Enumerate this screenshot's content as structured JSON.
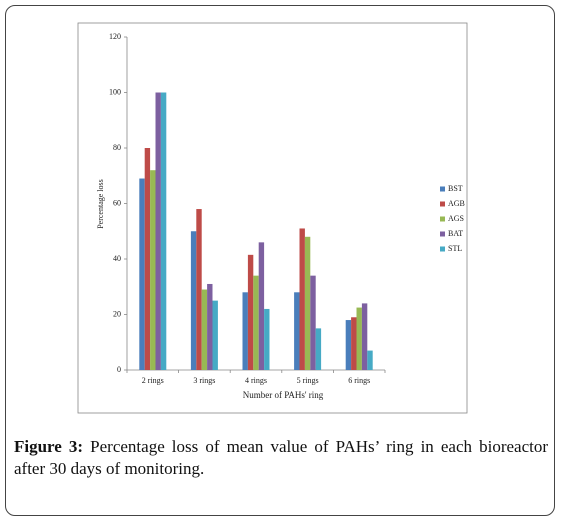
{
  "chart_data": {
    "type": "bar",
    "y_label": "Percentage loss",
    "x_label": "Number of PAHs' ring",
    "categories": [
      "2 rings",
      "3 rings",
      "4 rings",
      "5 rings",
      "6 rings"
    ],
    "series": [
      {
        "name": "BST",
        "color": "#4a7ebb",
        "values": [
          69,
          50,
          28,
          28,
          18
        ]
      },
      {
        "name": "AGB",
        "color": "#be4b48",
        "values": [
          80,
          58,
          41.5,
          51,
          19
        ]
      },
      {
        "name": "AGS",
        "color": "#98b954",
        "values": [
          72,
          29,
          34,
          48,
          22.5
        ]
      },
      {
        "name": "BAT",
        "color": "#7d60a0",
        "values": [
          100,
          31,
          46,
          34,
          24
        ]
      },
      {
        "name": "STL",
        "color": "#46aac5",
        "values": [
          100,
          25,
          22,
          15,
          7
        ]
      }
    ],
    "ylim": [
      0,
      120
    ],
    "yticks": [
      0,
      20,
      40,
      60,
      80,
      100,
      120
    ],
    "grid": false,
    "legend": "right"
  },
  "caption": {
    "label": "Figure 3:",
    "text": "Percentage loss of mean value of PAHs’ ring in each bioreactor after 30 days of monitoring."
  }
}
